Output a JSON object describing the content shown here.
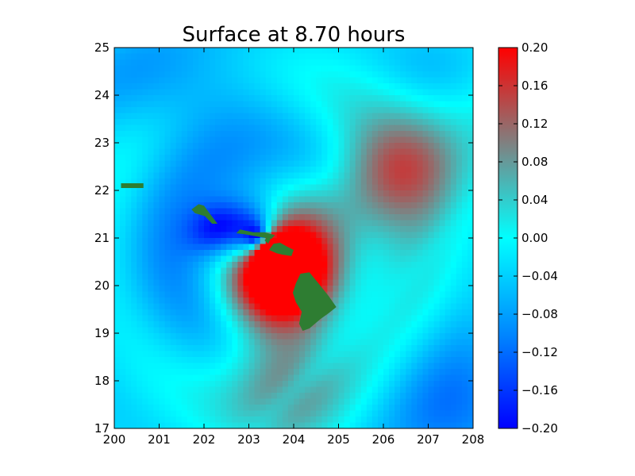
{
  "chart_data": {
    "type": "heatmap",
    "title": "Surface at 8.70 hours",
    "xlabel": "",
    "ylabel": "",
    "xlim": [
      200,
      208
    ],
    "ylim": [
      17,
      25
    ],
    "x_ticks": [
      "200",
      "201",
      "202",
      "203",
      "204",
      "205",
      "206",
      "207",
      "208"
    ],
    "y_ticks": [
      "17",
      "18",
      "19",
      "20",
      "21",
      "22",
      "23",
      "24",
      "25"
    ],
    "colorbar": {
      "range": [
        -0.2,
        0.2
      ],
      "ticks": [
        "0.20",
        "0.16",
        "0.12",
        "0.08",
        "0.04",
        "0.00",
        "−0.04",
        "−0.08",
        "−0.12",
        "−0.16",
        "−0.20"
      ],
      "colors": {
        "-0.20": "#0000ff",
        "-0.10": "#0088ff",
        "0.00": "#00ffff",
        "0.10": "#808080",
        "0.20": "#ff0000"
      }
    },
    "land_color": "#2e7d32",
    "features": {
      "source": {
        "center": [
          203.3,
          20.9
        ],
        "description": "dipole: negative NW, positive SE"
      },
      "positive_band_south": {
        "center": [
          203.8,
          18.7
        ],
        "value": 0.1
      },
      "positive_patch_ne": {
        "center": [
          206.8,
          22.5
        ],
        "value": 0.11
      },
      "negative_patch_nw": {
        "center": [
          202.3,
          21.2
        ],
        "value": -0.18
      }
    },
    "islands": [
      {
        "name": "Niihau_bar",
        "bbox_lon": [
          200.15,
          200.65
        ],
        "bbox_lat": [
          22.05,
          22.15
        ]
      },
      {
        "name": "Kauai_Oahu",
        "lon": [
          201.7,
          202.05,
          202.3
        ],
        "lat": [
          21.65,
          21.6,
          21.3
        ]
      },
      {
        "name": "Molokai",
        "lon": [
          202.8,
          203.55
        ],
        "lat": [
          21.12,
          21.05
        ]
      },
      {
        "name": "Maui",
        "lon": [
          203.6,
          203.9
        ],
        "lat": [
          20.85,
          20.75
        ]
      },
      {
        "name": "Hawaii",
        "lon": [
          204.1,
          204.9
        ],
        "lat": [
          20.25,
          19.1
        ]
      }
    ]
  }
}
